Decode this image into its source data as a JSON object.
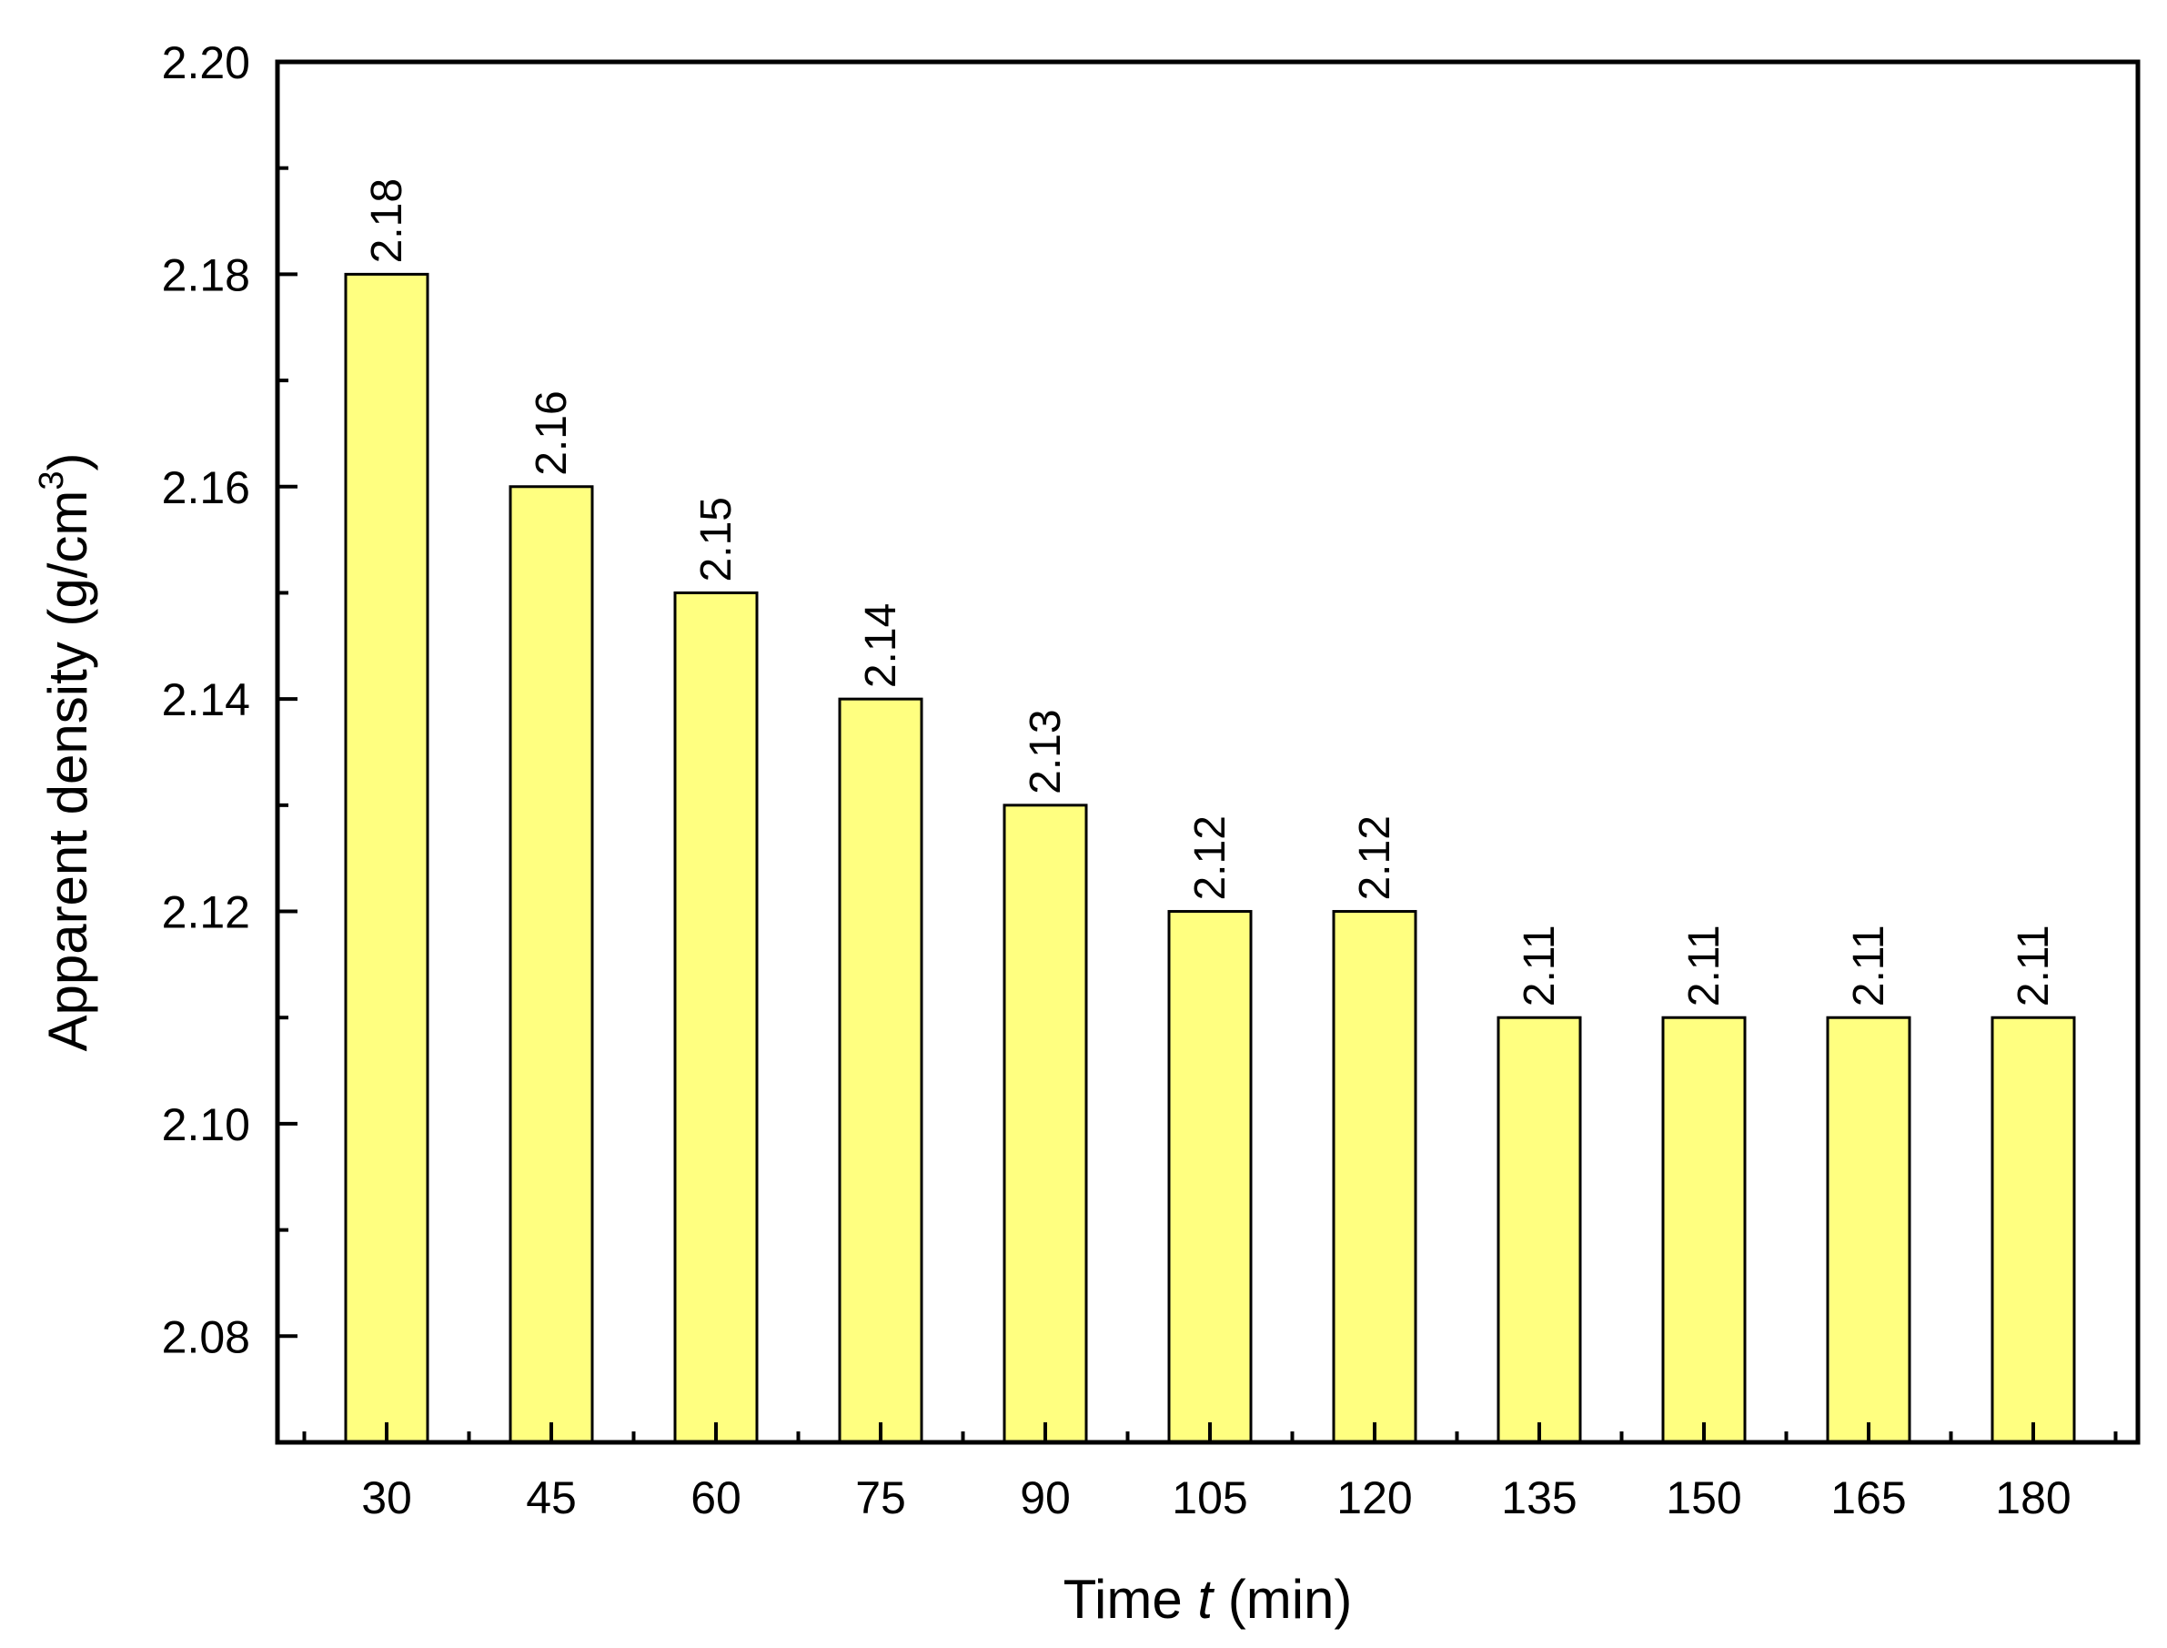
{
  "chart_data": {
    "type": "bar",
    "categories": [
      "30",
      "45",
      "60",
      "75",
      "90",
      "105",
      "120",
      "135",
      "150",
      "165",
      "180"
    ],
    "values": [
      2.18,
      2.16,
      2.15,
      2.14,
      2.13,
      2.12,
      2.12,
      2.11,
      2.11,
      2.11,
      2.11
    ],
    "data_labels": [
      "2.18",
      "2.16",
      "2.15",
      "2.14",
      "2.13",
      "2.12",
      "2.12",
      "2.11",
      "2.11",
      "2.11",
      "2.11"
    ],
    "xlabel": {
      "prefix": "Time ",
      "variable": "t",
      "suffix": " (min)"
    },
    "ylabel": {
      "main": "Apparent density (g/cm",
      "superscript": "3",
      "close": ")"
    },
    "ylim": [
      2.07,
      2.2
    ],
    "yticks": [
      "2.08",
      "2.10",
      "2.12",
      "2.14",
      "2.16",
      "2.18",
      "2.20"
    ],
    "ytick_values": [
      2.08,
      2.1,
      2.12,
      2.14,
      2.16,
      2.18,
      2.2
    ],
    "yminor_step": 0.01,
    "grid": false,
    "bar_color": "#ffff80",
    "bar_edge_color": "#000000"
  }
}
